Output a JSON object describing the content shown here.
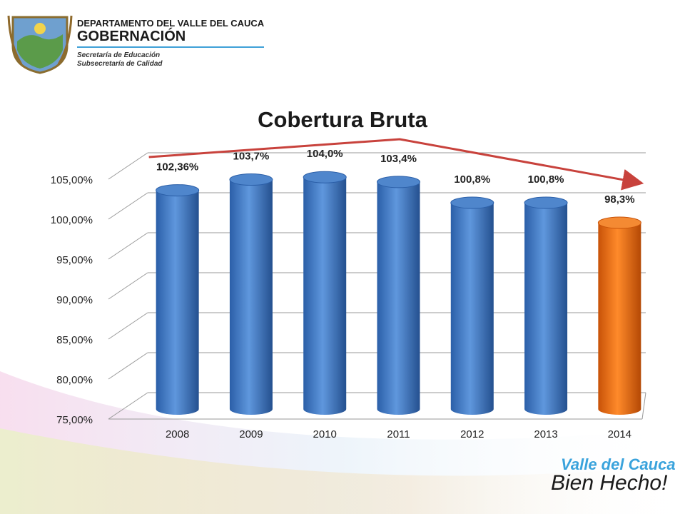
{
  "header": {
    "department": "DEPARTAMENTO DEL VALLE DEL CAUCA",
    "office": "GOBERNACIÓN",
    "secretariat": "Secretaría de Educación",
    "subsecretariat": "Subsecretaría de Calidad"
  },
  "brand": {
    "line1": "Valle del Cauca",
    "line2": "Bien Hecho!"
  },
  "chart_data": {
    "type": "bar",
    "title": "Cobertura Bruta",
    "categories": [
      "2008",
      "2009",
      "2010",
      "2011",
      "2012",
      "2013",
      "2014"
    ],
    "values": [
      102.36,
      103.7,
      104.0,
      103.4,
      100.8,
      100.8,
      98.3
    ],
    "data_labels": [
      "102,36%",
      "103,7%",
      "104,0%",
      "103,4%",
      "100,8%",
      "100,8%",
      "98,3%"
    ],
    "y_ticks": [
      "75,00%",
      "80,00%",
      "85,00%",
      "90,00%",
      "95,00%",
      "100,00%",
      "105,00%"
    ],
    "ylim": [
      75,
      105
    ],
    "grid": true,
    "bar_color": "#3f78c2",
    "highlight_color": "#f07212",
    "highlight_index": 6,
    "trend_color": "#c8423c"
  }
}
